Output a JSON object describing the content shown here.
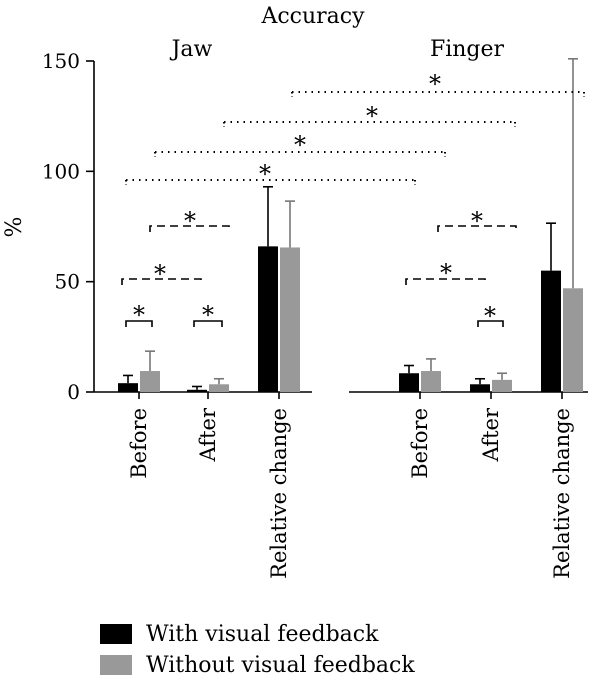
{
  "chart_data": {
    "type": "bar",
    "title": "Accuracy",
    "ylabel": "%",
    "xlabel": "",
    "ylim": [
      0,
      150
    ],
    "yticks": [
      0,
      50,
      100,
      150
    ],
    "groups": [
      {
        "label": "Jaw",
        "categories": [
          "Before",
          "After",
          "Relative change"
        ]
      },
      {
        "label": "Finger",
        "categories": [
          "Before",
          "After",
          "Relative change"
        ]
      }
    ],
    "categories": [
      "Before",
      "After",
      "Relative change",
      "Before",
      "After",
      "Relative change"
    ],
    "series": [
      {
        "name": "With visual feedback",
        "color": "#000000",
        "values": [
          4,
          1,
          66,
          8.5,
          3.5,
          55
        ],
        "error": [
          3.5,
          1.5,
          27,
          3.5,
          2.5,
          21.5
        ]
      },
      {
        "name": "Without visual feedback",
        "color": "#999999",
        "values": [
          9.5,
          3.5,
          65.5,
          9.5,
          5.5,
          47
        ],
        "error": [
          9,
          2.5,
          21,
          5.5,
          3,
          104
        ]
      }
    ],
    "significance_marker": "*",
    "grid": false,
    "legend_position": "bottom-left"
  }
}
